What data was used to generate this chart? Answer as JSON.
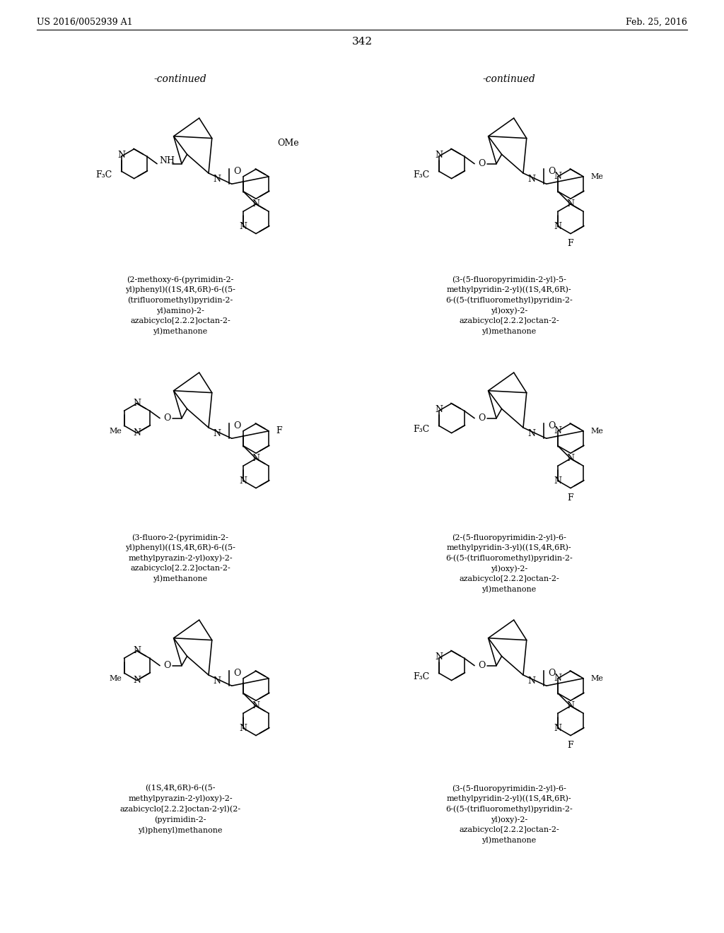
{
  "page_header_left": "US 2016/0052939 A1",
  "page_header_right": "Feb. 25, 2016",
  "page_number": "342",
  "background_color": "#ffffff",
  "text_color": "#000000",
  "captions": [
    "(2-methoxy-6-(pyrimidin-2-\nyl)phenyl)((1S,4R,6R)-6-((5-\n(trifluoromethyl)pyridin-2-\nyl)amino)-2-\nazabicyclo[2.2.2]octan-2-\nyl)methanone",
    "(3-(5-fluoropyrimidin-2-yl)-5-\nmethylpyridin-2-yl)((1S,4R,6R)-\n6-((5-(trifluoromethyl)pyridin-2-\nyl)oxy)-2-\nazabicyclo[2.2.2]octan-2-\nyl)methanone",
    "(3-fluoro-2-(pyrimidin-2-\nyl)phenyl)((1S,4R,6R)-6-((5-\nmethylpyrazin-2-yl)oxy)-2-\nazabicyclo[2.2.2]octan-2-\nyl)methanone",
    "(2-(5-fluoropyrimidin-2-yl)-6-\nmethylpyridin-3-yl)((1S,4R,6R)-\n6-((5-(trifluoromethyl)pyridin-2-\nyl)oxy)-2-\nazabicyclo[2.2.2]octan-2-\nyl)methanone",
    "((1S,4R,6R)-6-((5-\nmethylpyrazin-2-yl)oxy)-2-\nazabicyclo[2.2.2]octan-2-yl)(2-\n(pyrimidin-2-\nyl)phenyl)methanone",
    "(3-(5-fluoropyrimidin-2-yl)-6-\nmethylpyridin-2-yl)((1S,4R,6R)-\n6-((5-(trifluoromethyl)pyridin-2-\nyl)oxy)-2-\nazabicyclo[2.2.2]octan-2-\nyl)methanone"
  ]
}
